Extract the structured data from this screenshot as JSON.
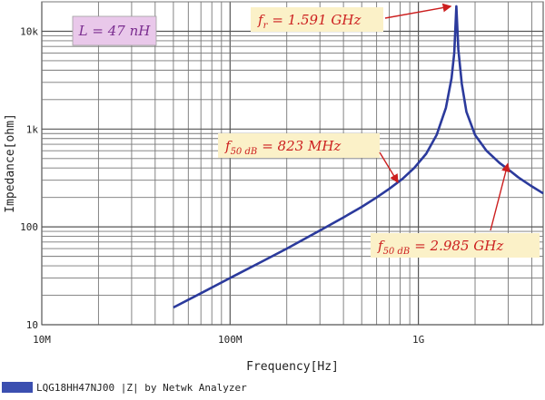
{
  "chart_data": {
    "type": "line",
    "xlabel": "Frequency[Hz]",
    "ylabel": "Impedance[ohm]",
    "xscale": "log",
    "yscale": "log",
    "xlim": [
      10000000,
      4600000000
    ],
    "ylim": [
      10,
      20000
    ],
    "grid": true,
    "x_ticks": [
      {
        "value": 10000000,
        "label": "10M"
      },
      {
        "value": 100000000,
        "label": "100M"
      },
      {
        "value": 1000000000,
        "label": "1G"
      }
    ],
    "y_ticks": [
      {
        "value": 10,
        "label": "10"
      },
      {
        "value": 100,
        "label": "100"
      },
      {
        "value": 1000,
        "label": "1k"
      },
      {
        "value": 10000,
        "label": "10k"
      }
    ],
    "series": [
      {
        "name": "LQG18HH47NJ00 |Z| by Netwk Analyzer",
        "color": "#2b3a9c",
        "x": [
          50000000,
          70000000,
          100000000,
          150000000,
          200000000,
          300000000,
          400000000,
          500000000,
          600000000,
          700000000,
          823000000,
          950000000,
          1100000000,
          1250000000,
          1400000000,
          1500000000,
          1550000000,
          1591000000,
          1630000000,
          1700000000,
          1800000000,
          2000000000,
          2300000000,
          2700000000,
          2985000000,
          3400000000,
          4000000000,
          4600000000
        ],
        "y": [
          15,
          21,
          30,
          45,
          60,
          92,
          125,
          160,
          200,
          245,
          310,
          400,
          560,
          870,
          1650,
          3300,
          6000,
          18000,
          6500,
          2900,
          1500,
          870,
          600,
          450,
          390,
          320,
          260,
          220
        ]
      }
    ],
    "annotations": [
      {
        "id": "box",
        "text": "L = 47 nH",
        "bg": "#e9c8ea",
        "color": "#7a2d8f"
      },
      {
        "id": "fr",
        "main": "f",
        "sub": "r",
        "value": "= 1.591 GHz",
        "bg": "#fbf1c8",
        "color": "#cc1f1f",
        "x": 1591000000,
        "y": 18000
      },
      {
        "id": "f50a",
        "main": "f",
        "sub": "50 dB",
        "value": "= 823 MHz",
        "bg": "#fbf1c8",
        "color": "#cc1f1f",
        "x": 823000000,
        "y": 310
      },
      {
        "id": "f50b",
        "main": "f",
        "sub": "50 dB",
        "value": "= 2.985 GHz",
        "bg": "#fbf1c8",
        "color": "#cc1f1f",
        "x": 2985000000,
        "y": 390
      }
    ],
    "legend": {
      "position": "bottom-left",
      "swatch_color": "#3b4fb0"
    }
  }
}
